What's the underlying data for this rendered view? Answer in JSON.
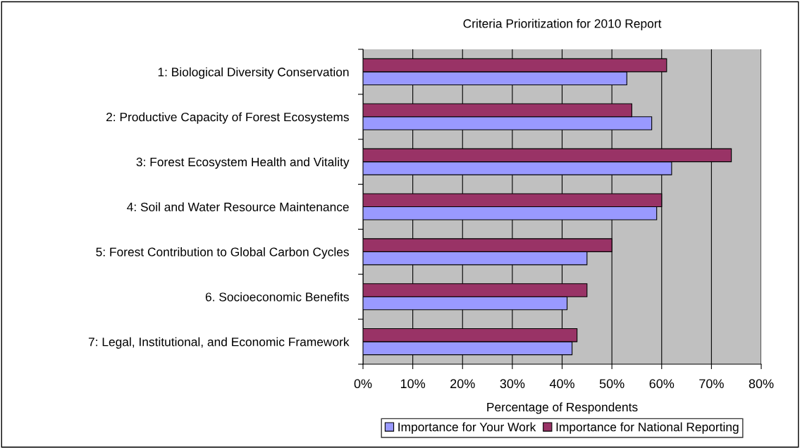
{
  "chart_data": {
    "type": "bar",
    "orientation": "horizontal",
    "title": "Criteria Prioritization for 2010 Report",
    "xlabel": "Percentage of Respondents",
    "categories": [
      "1: Biological Diversity Conservation",
      "2: Productive Capacity of Forest Ecosystems",
      "3: Forest Ecosystem Health and Vitality",
      "4: Soil and Water Resource Maintenance",
      "5: Forest Contribution to Global Carbon Cycles",
      "6. Socioeconomic Benefits",
      "7: Legal, Institutional, and Economic Framework"
    ],
    "series": [
      {
        "name": "Importance for Your Work",
        "color": "#9999ff",
        "values": [
          53,
          58,
          62,
          59,
          45,
          41,
          42
        ]
      },
      {
        "name": "Importance for National Reporting",
        "color": "#993366",
        "values": [
          61,
          54,
          74,
          60,
          50,
          45,
          43
        ]
      }
    ],
    "xlim": [
      0,
      80
    ],
    "xticks": [
      {
        "value": 0,
        "label": "0%"
      },
      {
        "value": 10,
        "label": "10%"
      },
      {
        "value": 20,
        "label": "20%"
      },
      {
        "value": 30,
        "label": "30%"
      },
      {
        "value": 40,
        "label": "40%"
      },
      {
        "value": 50,
        "label": "50%"
      },
      {
        "value": 60,
        "label": "60%"
      },
      {
        "value": 70,
        "label": "70%"
      },
      {
        "value": 80,
        "label": "80%"
      }
    ],
    "grid": "x",
    "legend": "bottom"
  }
}
